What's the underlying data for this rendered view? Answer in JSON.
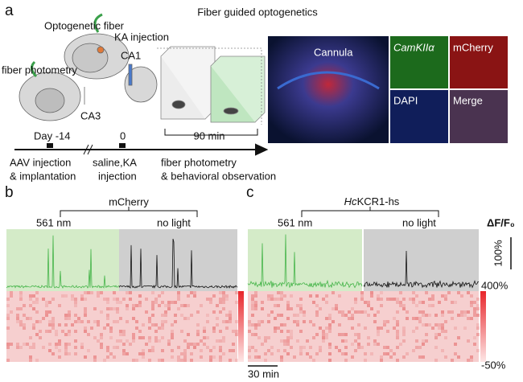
{
  "panel_a": {
    "label": "a",
    "title": "Fiber guided optogenetics",
    "schematic": {
      "optogenetic_fiber": "Optogenetic fiber",
      "ka_injection": "KA injection",
      "fiber_photometry": "fiber photometry",
      "ca1": "CA1",
      "ca3": "CA3"
    },
    "timeline": {
      "duration": "90 min",
      "day1": "Day -14",
      "day2": "0",
      "step1": [
        "AAV injection",
        "& implantation"
      ],
      "step2": [
        "saline,KA",
        "injection"
      ],
      "step3": [
        "fiber photometry",
        "& behavioral observation"
      ]
    },
    "micrograph": {
      "cannula": "Cannula",
      "camk": "CamKIIα",
      "mcherry": "mCherry",
      "dapi": "DAPI",
      "merge": "Merge"
    }
  },
  "panel_b": {
    "label": "b",
    "group": "mCherry",
    "left": "561 nm",
    "right": "no light"
  },
  "panel_c": {
    "label": "c",
    "group_italic": "Hc",
    "group_rest": "KCR1-hs",
    "left": "561 nm",
    "right": "no light"
  },
  "scale": {
    "dff": "ΔF/F₀",
    "bar": "100%",
    "cmax": "400%",
    "cmin": "-50%",
    "time": "30 min"
  }
}
